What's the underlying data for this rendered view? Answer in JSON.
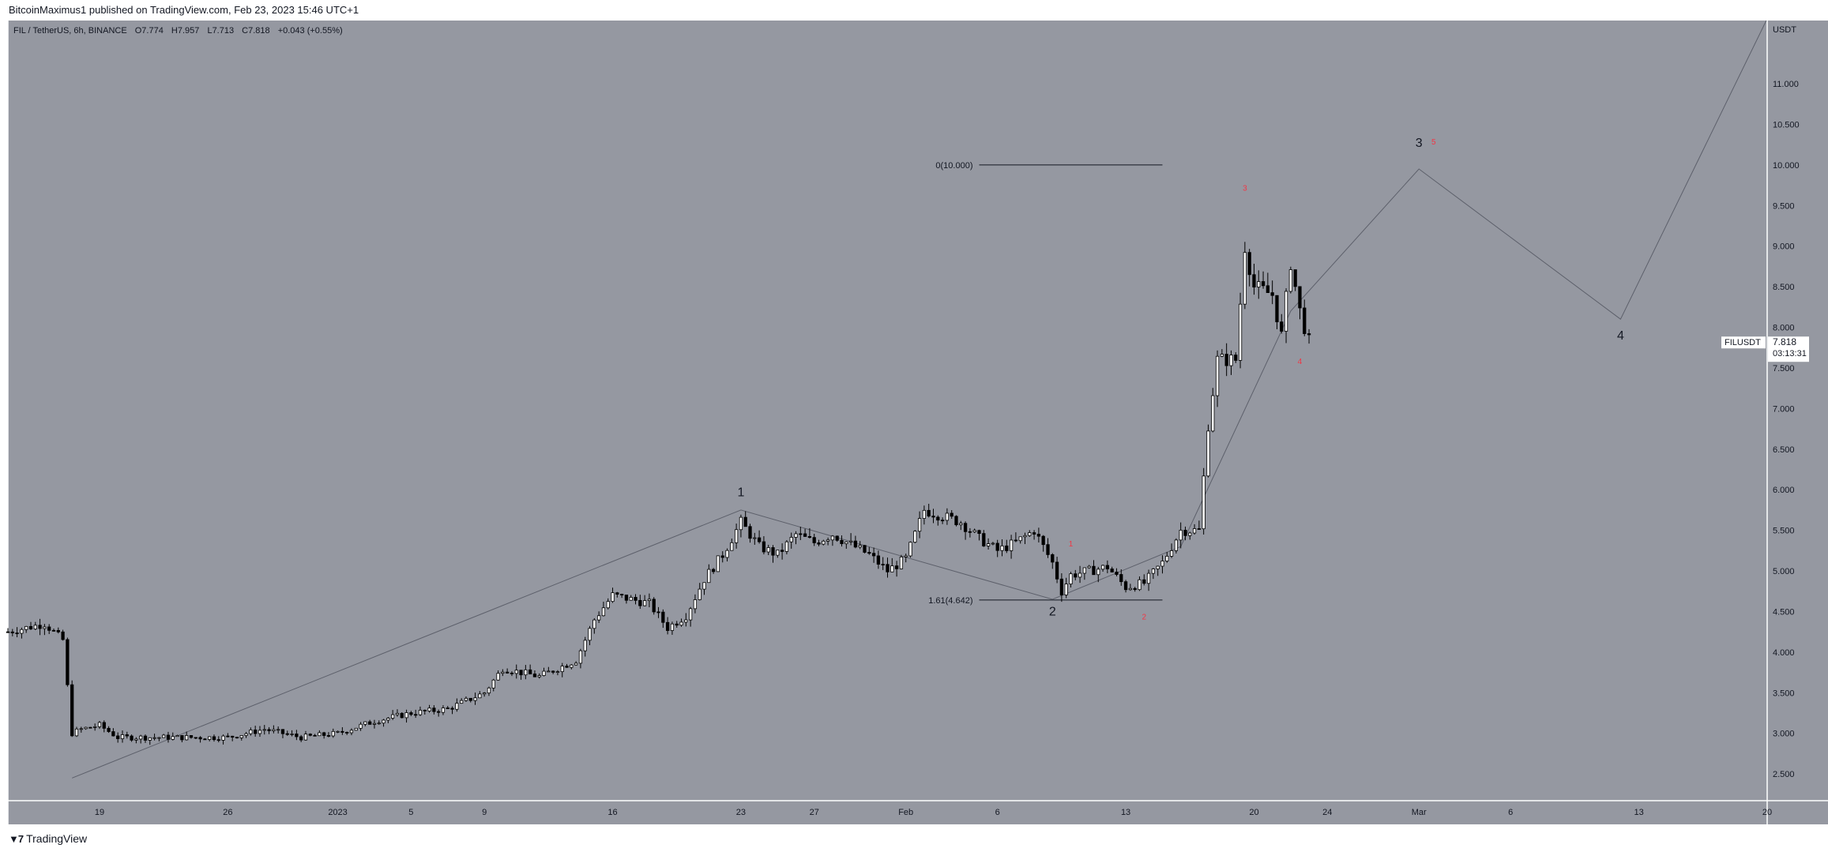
{
  "header": {
    "published": "BitcoinMaximus1 published on TradingView.com, Feb 23, 2023 15:46 UTC+1"
  },
  "legend": {
    "symbol": "FIL / TetherUS, 6h, BINANCE",
    "open_label": "O",
    "open": "7.774",
    "high_label": "H",
    "high": "7.957",
    "low_label": "L",
    "low": "7.713",
    "close_label": "C",
    "close": "7.818",
    "change": "+0.043 (+0.55%)"
  },
  "price_scale": {
    "currency": "USDT",
    "ticker": "FILUSDT",
    "last_price": "7.818",
    "countdown": "03:13:31"
  },
  "footer": {
    "brand": "TradingView"
  },
  "colors": {
    "background": "#9598a1",
    "line": "#5d606b",
    "candle": "#000000",
    "red_label": "#f23645"
  },
  "chart_data": {
    "type": "candlestick",
    "interval": "6h",
    "ylim": [
      2.2,
      11.7
    ],
    "xlim": [
      "2022-12-14",
      "2023-03-20"
    ],
    "y_ticks": [
      "2.500",
      "3.000",
      "3.500",
      "4.000",
      "4.500",
      "5.000",
      "5.500",
      "6.000",
      "6.500",
      "7.000",
      "7.500",
      "8.000",
      "8.500",
      "9.000",
      "9.500",
      "10.000",
      "10.500",
      "11.000"
    ],
    "x_ticks": [
      {
        "label": "19",
        "date": "2022-12-19"
      },
      {
        "label": "26",
        "date": "2022-12-26"
      },
      {
        "label": "2023",
        "date": "2023-01-01"
      },
      {
        "label": "5",
        "date": "2023-01-05"
      },
      {
        "label": "9",
        "date": "2023-01-09"
      },
      {
        "label": "16",
        "date": "2023-01-16"
      },
      {
        "label": "23",
        "date": "2023-01-23"
      },
      {
        "label": "27",
        "date": "2023-01-27"
      },
      {
        "label": "Feb",
        "date": "2023-02-01"
      },
      {
        "label": "6",
        "date": "2023-02-06"
      },
      {
        "label": "13",
        "date": "2023-02-13"
      },
      {
        "label": "20",
        "date": "2023-02-20"
      },
      {
        "label": "24",
        "date": "2023-02-24"
      },
      {
        "label": "Mar",
        "date": "2023-03-01"
      },
      {
        "label": "6",
        "date": "2023-03-06"
      },
      {
        "label": "13",
        "date": "2023-03-13"
      },
      {
        "label": "20",
        "date": "2023-03-20"
      }
    ],
    "price_path": [
      [
        "2022-12-14",
        4.25
      ],
      [
        "2022-12-15",
        4.3
      ],
      [
        "2022-12-16",
        4.35
      ],
      [
        "2022-12-17",
        4.15
      ],
      [
        "2022-12-17.5",
        3.0
      ],
      [
        "2022-12-18",
        3.05
      ],
      [
        "2022-12-19",
        3.1
      ],
      [
        "2022-12-20",
        2.95
      ],
      [
        "2022-12-22",
        2.95
      ],
      [
        "2022-12-24",
        2.95
      ],
      [
        "2022-12-26",
        2.95
      ],
      [
        "2022-12-28",
        3.05
      ],
      [
        "2022-12-30",
        2.95
      ],
      [
        "2023-01-01",
        3.0
      ],
      [
        "2023-01-03",
        3.15
      ],
      [
        "2023-01-05",
        3.25
      ],
      [
        "2023-01-07",
        3.3
      ],
      [
        "2023-01-09",
        3.5
      ],
      [
        "2023-01-10",
        3.8
      ],
      [
        "2023-01-12",
        3.7
      ],
      [
        "2023-01-14",
        3.9
      ],
      [
        "2023-01-15",
        4.4
      ],
      [
        "2023-01-16",
        4.7
      ],
      [
        "2023-01-18",
        4.6
      ],
      [
        "2023-01-19",
        4.3
      ],
      [
        "2023-01-20",
        4.45
      ],
      [
        "2023-01-21",
        4.9
      ],
      [
        "2023-01-22",
        5.2
      ],
      [
        "2023-01-23",
        5.6
      ],
      [
        "2023-01-24",
        5.3
      ],
      [
        "2023-01-25",
        5.2
      ],
      [
        "2023-01-26",
        5.45
      ],
      [
        "2023-01-27",
        5.35
      ],
      [
        "2023-01-28",
        5.45
      ],
      [
        "2023-01-30",
        5.2
      ],
      [
        "2023-01-31",
        5.0
      ],
      [
        "2023-02-01",
        5.15
      ],
      [
        "2023-02-02",
        5.75
      ],
      [
        "2023-02-04",
        5.6
      ],
      [
        "2023-02-05",
        5.4
      ],
      [
        "2023-02-06",
        5.25
      ],
      [
        "2023-02-07",
        5.35
      ],
      [
        "2023-02-08",
        5.5
      ],
      [
        "2023-02-09",
        5.1
      ],
      [
        "2023-02-09.5",
        4.75
      ],
      [
        "2023-02-10",
        4.95
      ],
      [
        "2023-02-12",
        5.05
      ],
      [
        "2023-02-13",
        4.8
      ],
      [
        "2023-02-14",
        4.85
      ],
      [
        "2023-02-15",
        5.1
      ],
      [
        "2023-02-16",
        5.5
      ],
      [
        "2023-02-17",
        5.5
      ],
      [
        "2023-02-17.5",
        6.8
      ],
      [
        "2023-02-18",
        7.6
      ],
      [
        "2023-02-19",
        7.6
      ],
      [
        "2023-02-19.5",
        9.0
      ],
      [
        "2023-02-20",
        8.5
      ],
      [
        "2023-02-21",
        8.4
      ],
      [
        "2023-02-21.5",
        7.9
      ],
      [
        "2023-02-22",
        8.8
      ],
      [
        "2023-02-22.5",
        8.2
      ],
      [
        "2023-02-23",
        7.818
      ]
    ],
    "projection_line": [
      [
        "2022-12-17.5",
        2.45
      ],
      [
        "2023-01-23",
        5.75
      ],
      [
        "2023-02-09",
        4.65
      ],
      [
        "2023-02-16",
        5.3
      ],
      [
        "2023-02-22",
        8.2
      ],
      [
        "2023-03-01",
        9.95
      ],
      [
        "2023-03-12",
        8.1
      ],
      [
        "2023-03-20",
        11.8
      ]
    ],
    "fib_levels": [
      {
        "label": "0(10.000)",
        "value": 10.0,
        "from": "2023-02-05",
        "to": "2023-02-15"
      },
      {
        "label": "1.61(4.642)",
        "value": 4.642,
        "from": "2023-02-05",
        "to": "2023-02-15"
      }
    ],
    "wave_labels": [
      {
        "text": "1",
        "date": "2023-01-23",
        "price": 5.92,
        "color": "black"
      },
      {
        "text": "2",
        "date": "2023-02-09",
        "price": 4.45,
        "color": "black"
      },
      {
        "text": "3",
        "date": "2023-03-01",
        "price": 10.22,
        "color": "black"
      },
      {
        "text": "4",
        "date": "2023-03-12",
        "price": 7.85,
        "color": "black"
      },
      {
        "text": "1",
        "date": "2023-02-10",
        "price": 5.3,
        "color": "red"
      },
      {
        "text": "2",
        "date": "2023-02-14",
        "price": 4.4,
        "color": "red"
      },
      {
        "text": "3",
        "date": "2023-02-19.5",
        "price": 9.68,
        "color": "red"
      },
      {
        "text": "4",
        "date": "2023-02-22.5",
        "price": 7.55,
        "color": "red"
      },
      {
        "text": "5",
        "date": "2023-03-01.8",
        "price": 10.25,
        "color": "red"
      }
    ]
  }
}
